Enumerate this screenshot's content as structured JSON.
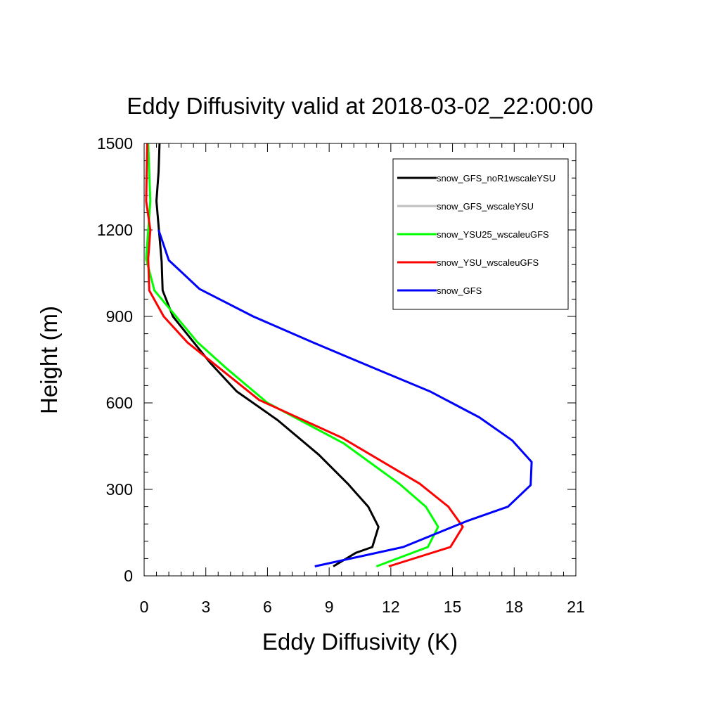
{
  "chart_data": {
    "type": "line",
    "title": "Eddy Diffusivity valid at 2018-03-02_22:00:00",
    "xlabel": "Eddy Diffusivity (K)",
    "ylabel": "Height (m)",
    "xlim": [
      0,
      21
    ],
    "ylim": [
      0,
      1500
    ],
    "x_ticks": [
      "0",
      "3",
      "6",
      "9",
      "12",
      "15",
      "18",
      "21"
    ],
    "y_ticks": [
      "0",
      "300",
      "600",
      "900",
      "1200",
      "1500"
    ],
    "legend_position": "top-right",
    "series": [
      {
        "name": "snow_GFS_noR1wscaleYSU",
        "color": "#000000",
        "points": [
          [
            9.2,
            33
          ],
          [
            10.3,
            80
          ],
          [
            11.1,
            100
          ],
          [
            11.4,
            170
          ],
          [
            10.9,
            240
          ],
          [
            9.9,
            320
          ],
          [
            8.5,
            420
          ],
          [
            6.5,
            540
          ],
          [
            4.5,
            640
          ],
          [
            3.2,
            740
          ],
          [
            1.4,
            900
          ],
          [
            0.9,
            990
          ],
          [
            0.85,
            1090
          ],
          [
            0.6,
            1300
          ],
          [
            0.7,
            1400
          ],
          [
            0.75,
            1500
          ]
        ]
      },
      {
        "name": "snow_GFS_wscaleYSU",
        "color": "#c0c0c0",
        "points": []
      },
      {
        "name": "snow_YSU25_wscaleuGFS",
        "color": "#00ff00",
        "points": [
          [
            11.3,
            33
          ],
          [
            13.8,
            100
          ],
          [
            14.3,
            170
          ],
          [
            13.7,
            240
          ],
          [
            12.4,
            320
          ],
          [
            9.7,
            460
          ],
          [
            6.0,
            600
          ],
          [
            4.0,
            720
          ],
          [
            2.6,
            810
          ],
          [
            0.5,
            990
          ],
          [
            0.1,
            1100
          ],
          [
            0.3,
            1300
          ],
          [
            0.2,
            1500
          ]
        ]
      },
      {
        "name": "snow_YSU_wscaleuGFS",
        "color": "#ff0000",
        "points": [
          [
            11.9,
            33
          ],
          [
            14.9,
            100
          ],
          [
            15.5,
            170
          ],
          [
            14.8,
            240
          ],
          [
            13.4,
            320
          ],
          [
            9.6,
            480
          ],
          [
            5.6,
            610
          ],
          [
            2.1,
            810
          ],
          [
            0.95,
            900
          ],
          [
            0.25,
            990
          ],
          [
            0.2,
            1100
          ],
          [
            0.3,
            1200
          ],
          [
            0.1,
            1300
          ],
          [
            0.15,
            1500
          ]
        ]
      },
      {
        "name": "snow_GFS",
        "color": "#0000ff",
        "points": [
          [
            8.3,
            33
          ],
          [
            12.6,
            100
          ],
          [
            15.7,
            190
          ],
          [
            17.7,
            240
          ],
          [
            18.8,
            315
          ],
          [
            18.85,
            395
          ],
          [
            17.9,
            470
          ],
          [
            16.3,
            550
          ],
          [
            13.9,
            640
          ],
          [
            11.2,
            720
          ],
          [
            8.2,
            810
          ],
          [
            5.3,
            900
          ],
          [
            2.7,
            995
          ],
          [
            1.2,
            1095
          ],
          [
            0.7,
            1200
          ]
        ]
      }
    ]
  }
}
